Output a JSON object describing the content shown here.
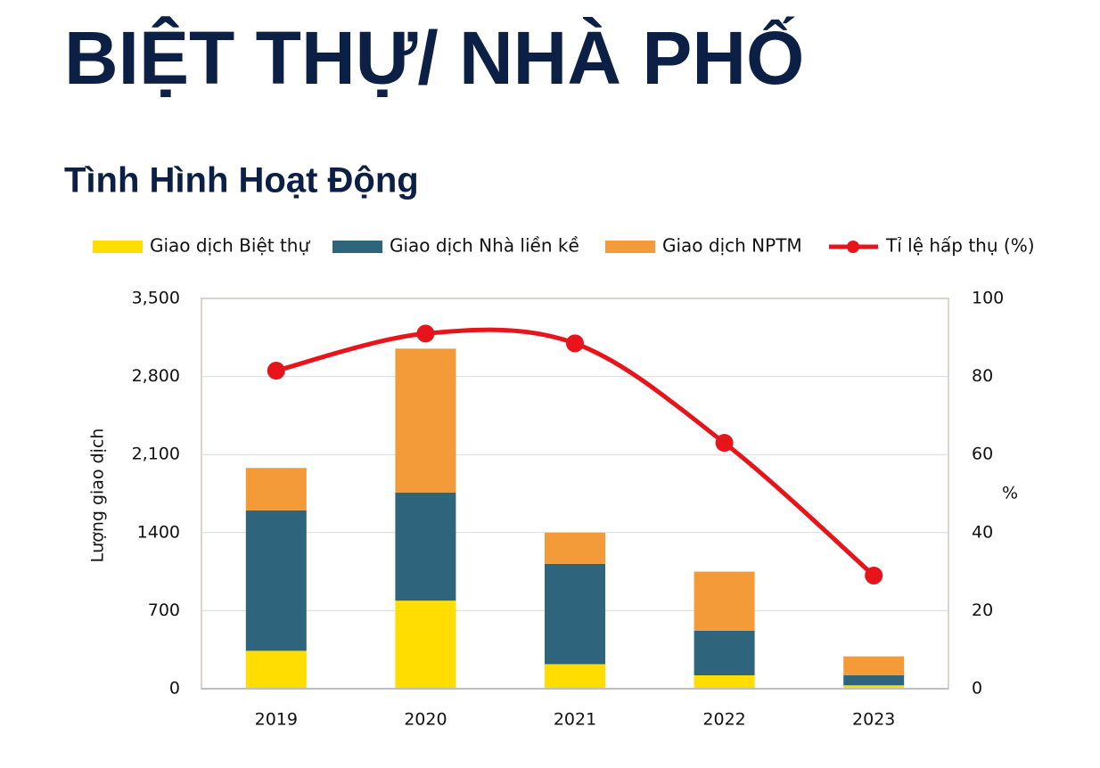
{
  "chart_data": {
    "type": "bar",
    "stacked": true,
    "title": "BIỆT THỰ/ NHÀ PHỐ",
    "subtitle": "Tình Hình Hoạt Động",
    "y_label": "Lượng giao dịch",
    "y2_label": "%",
    "categories": [
      "2019",
      "2020",
      "2021",
      "2022",
      "2023"
    ],
    "series": [
      {
        "name": "Giao dịch Biệt thự",
        "color": "#FFDD00",
        "values": [
          340,
          790,
          220,
          120,
          30
        ]
      },
      {
        "name": "Giao dịch Nhà liền kề",
        "color": "#2E657D",
        "values": [
          1260,
          970,
          900,
          400,
          90
        ]
      },
      {
        "name": "Giao dịch NPTM",
        "color": "#F29B38",
        "values": [
          380,
          1290,
          280,
          530,
          170
        ]
      },
      {
        "name": "Tỉ lệ hấp thụ (%)",
        "color": "#E8141B",
        "type": "line",
        "axis": "y2",
        "values": [
          81.5,
          91,
          88.5,
          63,
          29
        ]
      }
    ],
    "ylim": [
      0,
      3500
    ],
    "yticks": [
      0,
      700,
      1400,
      {
        "value": 2100,
        "label": "2,100"
      },
      {
        "value": 2800,
        "label": "2,800"
      },
      {
        "value": 3500,
        "label": "3,500"
      }
    ],
    "y2lim": [
      0,
      100
    ],
    "y2ticks": [
      0,
      20,
      40,
      60,
      80,
      100
    ],
    "grid": true,
    "legend": "top"
  }
}
